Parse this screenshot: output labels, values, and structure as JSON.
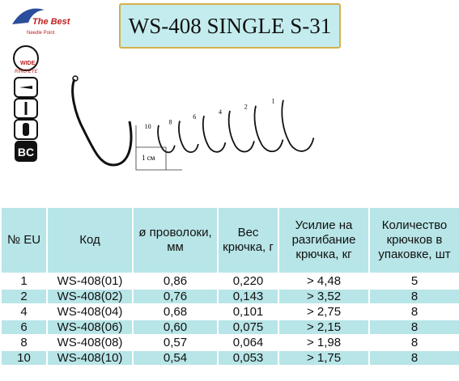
{
  "header": {
    "title": "WS-408 SINGLE S-31"
  },
  "logo": {
    "brand": "The Best",
    "tagline": "Needle Point",
    "eye_type": "WIDE",
    "eye_caption": "RING EYE",
    "coating": "BC"
  },
  "drawing": {
    "sizes": [
      "10",
      "8",
      "6",
      "4",
      "2",
      "1"
    ],
    "scale": "1 см"
  },
  "table": {
    "columns": [
      "№ EU",
      "Код",
      "ø проволоки, мм",
      "Вес крючка, г",
      "Усилие на разгибание крючка, кг",
      "Количество крючков в упаковке, шт"
    ],
    "rows": [
      [
        "1",
        "WS-408(01)",
        "0,86",
        "0,220",
        "> 4,48",
        "5"
      ],
      [
        "2",
        "WS-408(02)",
        "0,76",
        "0,143",
        "> 3,52",
        "8"
      ],
      [
        "4",
        "WS-408(04)",
        "0,68",
        "0,101",
        "> 2,75",
        "8"
      ],
      [
        "6",
        "WS-408(06)",
        "0,60",
        "0,075",
        "> 2,15",
        "8"
      ],
      [
        "8",
        "WS-408(08)",
        "0,57",
        "0,064",
        "> 1,98",
        "8"
      ],
      [
        "10",
        "WS-408(10)",
        "0,54",
        "0,053",
        "> 1,75",
        "8"
      ]
    ]
  }
}
